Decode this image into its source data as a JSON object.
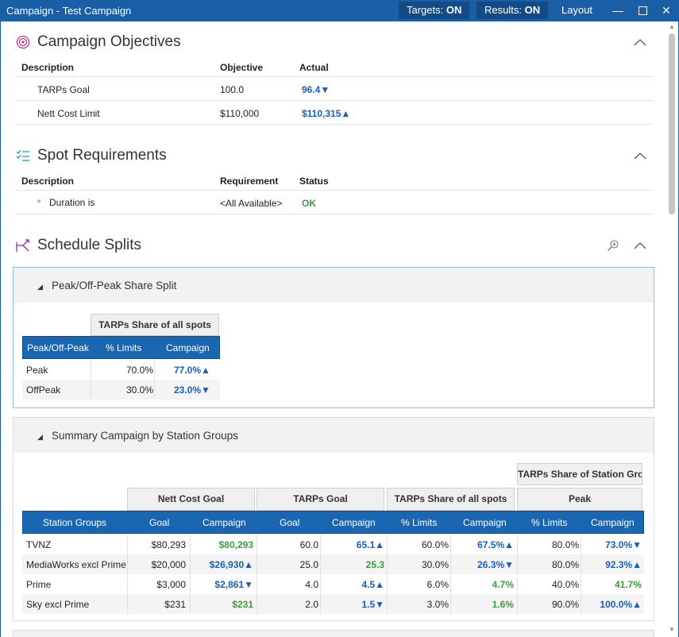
{
  "window": {
    "title": "Campaign - Test Campaign",
    "targets_label": "Targets:",
    "targets_value": "ON",
    "results_label": "Results:",
    "results_value": "ON",
    "layout_label": "Layout"
  },
  "objectives": {
    "title": "Campaign Objectives",
    "headers": [
      "Description",
      "Objective",
      "Actual"
    ],
    "rows": [
      {
        "description": "TARPs Goal",
        "objective": "100.0",
        "actual": "96.4▼"
      },
      {
        "description": "Nett Cost Limit",
        "objective": "$110,000",
        "actual": "$110,315▲"
      }
    ]
  },
  "spot_requirements": {
    "title": "Spot Requirements",
    "headers": [
      "Description",
      "Requirement",
      "Status"
    ],
    "rows": [
      {
        "description": "Duration is",
        "requirement": "<All Available>",
        "status": "OK"
      }
    ]
  },
  "schedule_splits": {
    "title": "Schedule Splits",
    "peak_panel": {
      "title": "Peak/Off-Peak Share Split",
      "group_header": "TARPs Share of all spots",
      "headers": [
        "Peak/Off-Peak",
        "% Limits",
        "Campaign"
      ],
      "rows": [
        {
          "name": "Peak",
          "limit": "70.0%",
          "campaign": "77.0%▲"
        },
        {
          "name": "OffPeak",
          "limit": "30.0%",
          "campaign": "23.0%▼"
        }
      ]
    },
    "summary_panel": {
      "title": "Summary Campaign by Station Groups",
      "top_group": "TARPs Share of Station Groups",
      "groups": [
        "Nett Cost Goal",
        "TARPs Goal",
        "TARPs Share of all spots",
        "Peak"
      ],
      "headers": [
        "Station Groups",
        "Goal",
        "Campaign",
        "Goal",
        "Campaign",
        "% Limits",
        "Campaign",
        "% Limits",
        "Campaign"
      ],
      "rows": [
        {
          "name": "TVNZ",
          "cost_goal": "$80,293",
          "cost_campaign": "$80,293",
          "tarps_goal": "60.0",
          "tarps_campaign": "65.1▲",
          "share_limit": "60.0%",
          "share_campaign": "67.5%▲",
          "peak_limit": "80.0%",
          "peak_campaign": "73.0%▼"
        },
        {
          "name": "MediaWorks excl Prime",
          "cost_goal": "$20,000",
          "cost_campaign": "$26,930▲",
          "tarps_goal": "25.0",
          "tarps_campaign": "25.3",
          "share_limit": "30.0%",
          "share_campaign": "26.3%▼",
          "peak_limit": "80.0%",
          "peak_campaign": "92.3%▲"
        },
        {
          "name": "Prime",
          "cost_goal": "$3,000",
          "cost_campaign": "$2,861▼",
          "tarps_goal": "4.0",
          "tarps_campaign": "4.5▲",
          "share_limit": "6.0%",
          "share_campaign": "4.7%",
          "peak_limit": "40.0%",
          "peak_campaign": "41.7%"
        },
        {
          "name": "Sky excl Prime",
          "cost_goal": "$231",
          "cost_campaign": "$231",
          "tarps_goal": "2.0",
          "tarps_campaign": "1.5▼",
          "share_limit": "3.0%",
          "share_campaign": "1.6%",
          "peak_limit": "90.0%",
          "peak_campaign": "100.0%▲"
        }
      ]
    }
  },
  "colors": {
    "accent": "#1a5ea6",
    "header_blue": "#1b66b0",
    "value_blue": "#1a5ebd",
    "value_green": "#3aa03a"
  }
}
